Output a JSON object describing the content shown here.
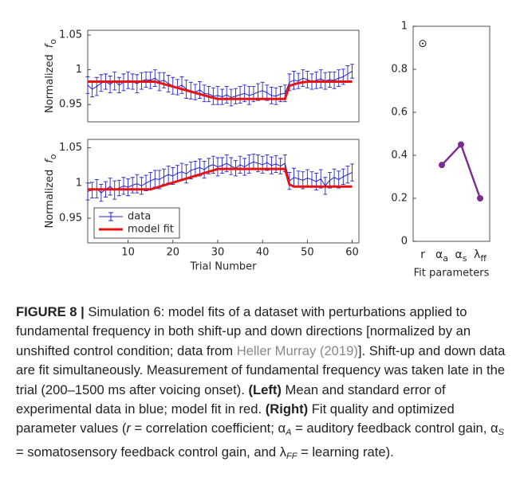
{
  "chart_data": [
    {
      "type": "line",
      "ylabel": "Normalized",
      "ylabel_symbol": "f",
      "ylabel_subscript": "o",
      "x": [
        1,
        2,
        3,
        4,
        5,
        6,
        7,
        8,
        9,
        10,
        11,
        12,
        13,
        14,
        15,
        16,
        17,
        18,
        19,
        20,
        21,
        22,
        23,
        24,
        25,
        26,
        27,
        28,
        29,
        30,
        31,
        32,
        33,
        34,
        35,
        36,
        37,
        38,
        39,
        40,
        41,
        42,
        43,
        44,
        45,
        46,
        47,
        48,
        49,
        50,
        51,
        52,
        53,
        54,
        55,
        56,
        57,
        58,
        59,
        60
      ],
      "xlim": [
        1,
        61.5
      ],
      "ylim": [
        0.925,
        1.057
      ],
      "yticks": [
        0.95,
        1,
        1.05
      ],
      "series": [
        {
          "color": "#2323c8",
          "values": [
            0.978,
            0.972,
            0.976,
            0.981,
            0.983,
            0.979,
            0.984,
            0.978,
            0.982,
            0.985,
            0.983,
            0.98,
            0.984,
            0.986,
            0.985,
            0.988,
            0.983,
            0.985,
            0.98,
            0.977,
            0.975,
            0.978,
            0.972,
            0.97,
            0.968,
            0.971,
            0.966,
            0.965,
            0.962,
            0.963,
            0.961,
            0.964,
            0.96,
            0.962,
            0.964,
            0.966,
            0.963,
            0.965,
            0.968,
            0.97,
            0.967,
            0.963,
            0.962,
            0.965,
            0.966,
            0.982,
            0.985,
            0.984,
            0.988,
            0.986,
            0.983,
            0.985,
            0.987,
            0.984,
            0.986,
            0.985,
            0.988,
            0.99,
            0.994,
            0.998
          ],
          "errors": [
            0.012,
            0.011,
            0.013,
            0.012,
            0.011,
            0.012,
            0.013,
            0.011,
            0.012,
            0.012,
            0.011,
            0.013,
            0.012,
            0.011,
            0.012,
            0.012,
            0.013,
            0.011,
            0.012,
            0.012,
            0.011,
            0.012,
            0.013,
            0.012,
            0.011,
            0.012,
            0.012,
            0.011,
            0.012,
            0.013,
            0.011,
            0.012,
            0.012,
            0.011,
            0.012,
            0.012,
            0.013,
            0.011,
            0.012,
            0.012,
            0.011,
            0.012,
            0.012,
            0.011,
            0.012,
            0.012,
            0.013,
            0.011,
            0.012,
            0.012,
            0.011,
            0.012,
            0.013,
            0.012,
            0.011,
            0.012,
            0.012,
            0.011,
            0.012,
            0.01
          ]
        },
        {
          "color": "#e81212",
          "values": [
            0.983,
            0.983,
            0.983,
            0.983,
            0.983,
            0.983,
            0.983,
            0.983,
            0.983,
            0.983,
            0.983,
            0.983,
            0.983,
            0.983,
            0.983,
            0.983,
            0.9812,
            0.9794,
            0.9776,
            0.9758,
            0.974,
            0.9722,
            0.9704,
            0.9686,
            0.9668,
            0.965,
            0.9632,
            0.9614,
            0.9596,
            0.958,
            0.958,
            0.958,
            0.958,
            0.958,
            0.958,
            0.958,
            0.958,
            0.958,
            0.958,
            0.958,
            0.958,
            0.958,
            0.958,
            0.958,
            0.958,
            0.977,
            0.979,
            0.981,
            0.982,
            0.983,
            0.983,
            0.983,
            0.983,
            0.983,
            0.983,
            0.983,
            0.983,
            0.983,
            0.983,
            0.983
          ]
        }
      ]
    },
    {
      "type": "line",
      "ylabel": "Normalized",
      "ylabel_symbol": "f",
      "ylabel_subscript": "o",
      "xlabel": "Trial Number",
      "x": [
        1,
        2,
        3,
        4,
        5,
        6,
        7,
        8,
        9,
        10,
        11,
        12,
        13,
        14,
        15,
        16,
        17,
        18,
        19,
        20,
        21,
        22,
        23,
        24,
        25,
        26,
        27,
        28,
        29,
        30,
        31,
        32,
        33,
        34,
        35,
        36,
        37,
        38,
        39,
        40,
        41,
        42,
        43,
        44,
        45,
        46,
        47,
        48,
        49,
        50,
        51,
        52,
        53,
        54,
        55,
        56,
        57,
        58,
        59,
        60
      ],
      "xlim": [
        1,
        61.5
      ],
      "xticks": [
        10,
        20,
        30,
        40,
        50,
        60
      ],
      "ylim": [
        0.915,
        1.062
      ],
      "yticks": [
        0.95,
        1,
        1.05
      ],
      "legend": "lower left",
      "series": [
        {
          "name": "data",
          "color": "#2323c8",
          "values": [
            0.988,
            0.99,
            0.992,
            0.986,
            0.991,
            0.995,
            0.99,
            0.993,
            0.996,
            0.994,
            0.997,
            0.999,
            0.996,
            1.0,
            1.003,
            1.006,
            1.005,
            1.009,
            1.012,
            1.01,
            1.014,
            1.016,
            1.013,
            1.018,
            1.02,
            1.022,
            1.019,
            1.024,
            1.026,
            1.023,
            1.025,
            1.028,
            1.024,
            1.021,
            1.026,
            1.023,
            1.027,
            1.03,
            1.028,
            1.026,
            1.029,
            1.025,
            1.027,
            1.024,
            1.028,
            1.003,
            1.008,
            1.006,
            1.004,
            1.007,
            1.005,
            1.002,
            1.006,
            0.996,
            1.004,
            1.008,
            1.005,
            1.009,
            1.012,
            1.015
          ],
          "errors": [
            0.012,
            0.011,
            0.013,
            0.012,
            0.011,
            0.012,
            0.013,
            0.011,
            0.012,
            0.012,
            0.011,
            0.013,
            0.012,
            0.011,
            0.012,
            0.012,
            0.013,
            0.011,
            0.012,
            0.012,
            0.011,
            0.012,
            0.013,
            0.012,
            0.011,
            0.012,
            0.012,
            0.011,
            0.012,
            0.013,
            0.011,
            0.012,
            0.012,
            0.011,
            0.012,
            0.012,
            0.013,
            0.011,
            0.012,
            0.012,
            0.011,
            0.012,
            0.012,
            0.011,
            0.012,
            0.012,
            0.013,
            0.011,
            0.012,
            0.012,
            0.011,
            0.012,
            0.013,
            0.012,
            0.011,
            0.012,
            0.012,
            0.011,
            0.012,
            0.012
          ]
        },
        {
          "name": "model fit",
          "color": "#e81212",
          "values": [
            0.991,
            0.991,
            0.991,
            0.991,
            0.991,
            0.991,
            0.991,
            0.991,
            0.991,
            0.991,
            0.991,
            0.991,
            0.991,
            0.991,
            0.991,
            0.9929,
            0.9948,
            0.9968,
            0.9987,
            1.0006,
            1.0026,
            1.0045,
            1.0064,
            1.0084,
            1.0103,
            1.0122,
            1.0142,
            1.0161,
            1.018,
            1.02,
            1.02,
            1.02,
            1.02,
            1.02,
            1.02,
            1.02,
            1.02,
            1.02,
            1.02,
            1.02,
            1.02,
            1.02,
            1.02,
            1.02,
            1.02,
            0.998,
            0.995,
            0.995,
            0.995,
            0.995,
            0.995,
            0.995,
            0.995,
            0.995,
            0.995,
            0.995,
            0.995,
            0.995,
            0.995,
            0.995
          ]
        }
      ]
    },
    {
      "type": "line",
      "xlabel": "Fit parameters",
      "categories": [
        {
          "base": "r"
        },
        {
          "base": "α",
          "sub": "a"
        },
        {
          "base": "α",
          "sub": "s"
        },
        {
          "base": "λ",
          "sub": "ff"
        }
      ],
      "ylim": [
        0,
        1
      ],
      "yticks": [
        0,
        0.2,
        0.4,
        0.6,
        0.8,
        1
      ],
      "series": [
        {
          "color": "#000000",
          "marker": "circle-dot",
          "values": [
            0.92,
            null,
            null,
            null
          ]
        },
        {
          "color": "#7b2a8e",
          "marker": "circle",
          "values": [
            null,
            0.355,
            0.45,
            0.2
          ]
        }
      ]
    }
  ],
  "caption": [
    {
      "text": "FIGURE 8 |",
      "style": "bold"
    },
    {
      "text": " Simulation 6: model fits of a dataset with perturbations applied to fundamental frequency in both shift-up and down directions [normalized by an unshifted control condition; data from "
    },
    {
      "text": "Heller Murray (2019)",
      "style": "link"
    },
    {
      "text": "]. Shift-up and down data are fit simultaneously. Measurement of fundamental frequency was taken late in the trial (200–1500 ms after voicing onset). "
    },
    {
      "text": "(Left)",
      "style": "bold"
    },
    {
      "text": " Mean and standard error of experimental data in blue; model fit in red. "
    },
    {
      "text": "(Right)",
      "style": "bold"
    },
    {
      "text": " Fit quality and optimized parameter values ("
    },
    {
      "text": "r",
      "style": "italic"
    },
    {
      "text": " = correlation coefficient; α"
    },
    {
      "text": "A",
      "style": "sub"
    },
    {
      "text": " = auditory feedback control gain, α"
    },
    {
      "text": "S",
      "style": "sub"
    },
    {
      "text": " = somatosensory feedback control gain, and λ"
    },
    {
      "text": "FF",
      "style": "sub"
    },
    {
      "text": " = learning rate)."
    }
  ]
}
